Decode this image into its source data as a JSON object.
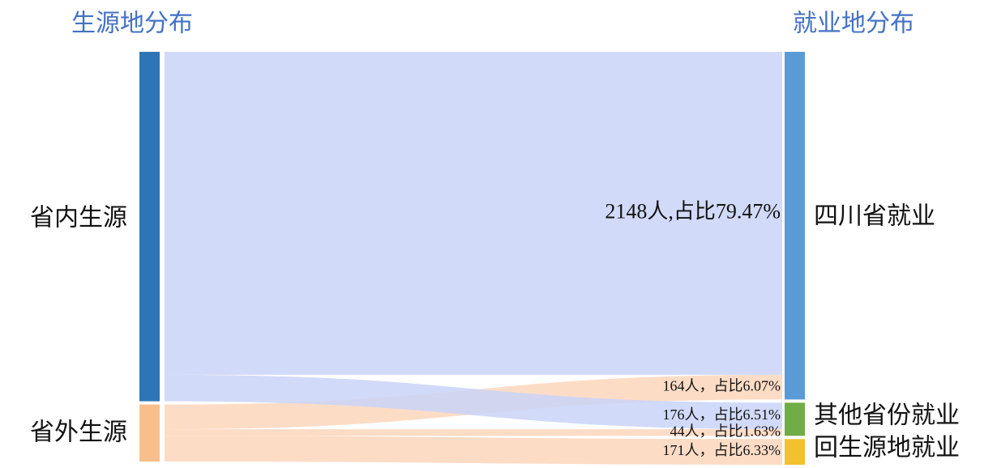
{
  "chart_data": {
    "type": "sankey",
    "source_title": "生源地分布",
    "target_title": "就业地分布",
    "sources": [
      {
        "name": "省内生源",
        "color": "#2e75b6",
        "link_color": "#c9d3f7"
      },
      {
        "name": "省外生源",
        "color": "#f8bf8c",
        "link_color": "#fdd6bc"
      }
    ],
    "targets": [
      {
        "name": "四川省就业",
        "color": "#5b9bd5"
      },
      {
        "name": "其他省份就业",
        "color": "#70ad47"
      },
      {
        "name": "回生源地就业",
        "color": "#f2c12e"
      }
    ],
    "links": [
      {
        "source": 0,
        "target": 0,
        "value": 2148,
        "label": "2148人,占比79.47%"
      },
      {
        "source": 1,
        "target": 0,
        "value": 164,
        "label": "164人，占比6.07%"
      },
      {
        "source": 0,
        "target": 1,
        "value": 176,
        "label": "176人，占比6.51%"
      },
      {
        "source": 1,
        "target": 1,
        "value": 44,
        "label": "44人，占比1.63%"
      },
      {
        "source": 1,
        "target": 2,
        "value": 171,
        "label": "171人，占比6.33%"
      }
    ]
  }
}
